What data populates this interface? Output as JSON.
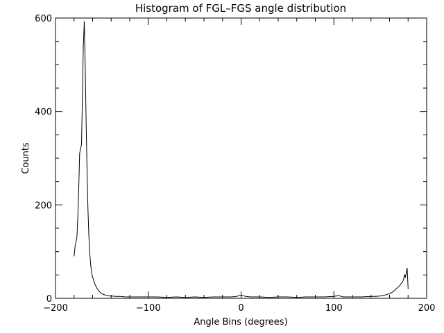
{
  "chart_data": {
    "type": "line",
    "title": "Histogram of FGL–FGS angle distribution",
    "xlabel": "Angle Bins (degrees)",
    "ylabel": "Counts",
    "xlim": [
      -200,
      200
    ],
    "ylim": [
      0,
      600
    ],
    "xticks": [
      -200,
      -100,
      0,
      100,
      200
    ],
    "xtick_labels": [
      "−200",
      "−100",
      "0",
      "100",
      "200"
    ],
    "yticks": [
      0,
      200,
      400,
      600
    ],
    "ytick_labels": [
      "0",
      "200",
      "400",
      "600"
    ],
    "grid": false,
    "line_color": "#000000",
    "series": [
      {
        "x": [
          -180,
          -179,
          -178,
          -177,
          -176,
          -175,
          -174,
          -173,
          -172,
          -171,
          -170,
          -169,
          -168,
          -167,
          -166,
          -165,
          -164,
          -163,
          -162,
          -161,
          -160,
          -159,
          -158,
          -157,
          -156,
          -155,
          -154,
          -153,
          -152,
          -151,
          -150,
          -148,
          -146,
          -144,
          -142,
          -140,
          -135,
          -130,
          -125,
          -120,
          -110,
          -100,
          -90,
          -80,
          -70,
          -60,
          -50,
          -40,
          -30,
          -20,
          -10,
          -5,
          0,
          5,
          10,
          20,
          30,
          40,
          50,
          60,
          70,
          80,
          90,
          100,
          105,
          110,
          120,
          130,
          140,
          145,
          150,
          155,
          160,
          163,
          166,
          168,
          170,
          172,
          174,
          175,
          176,
          177,
          178,
          179,
          180
        ],
        "y": [
          90,
          110,
          120,
          130,
          170,
          230,
          310,
          320,
          330,
          430,
          540,
          593,
          500,
          380,
          270,
          190,
          130,
          95,
          70,
          55,
          45,
          40,
          32,
          28,
          25,
          20,
          18,
          15,
          13,
          11,
          10,
          8,
          7,
          6,
          5,
          5,
          4,
          4,
          3,
          3,
          3,
          3,
          3,
          2,
          3,
          2,
          3,
          2,
          3,
          3,
          3,
          4,
          7,
          4,
          3,
          3,
          2,
          3,
          3,
          2,
          3,
          3,
          3,
          4,
          6,
          3,
          3,
          3,
          4,
          4,
          5,
          7,
          10,
          13,
          18,
          22,
          25,
          30,
          35,
          40,
          50,
          45,
          55,
          65,
          20
        ]
      }
    ]
  }
}
